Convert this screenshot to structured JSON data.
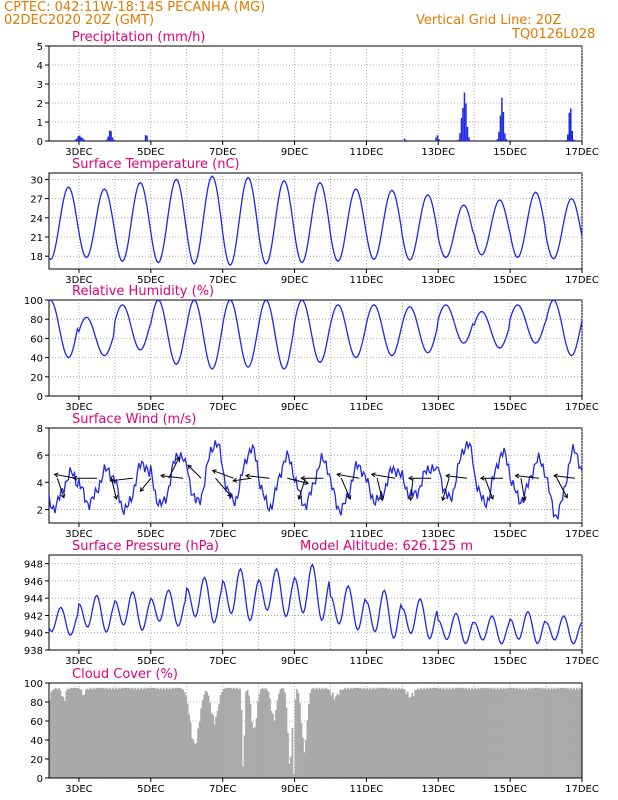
{
  "header": {
    "station": "CPTEC:  042:11W-18:14S  PECANHA (MG)",
    "run": "02DEC2020 20Z (GMT)",
    "grid_note": "Vertical Grid Line: 20Z",
    "model_code": "TQ0126L028"
  },
  "colors": {
    "header": "#e07a00",
    "title": "#e0007a",
    "series": "#1e28e6",
    "arrow": "#000000",
    "cloud": "#a9a9a9"
  },
  "x_axis": {
    "ticks": [
      "3DEC",
      "5DEC",
      "7DEC",
      "9DEC",
      "11DEC",
      "13DEC",
      "15DEC",
      "17DEC"
    ]
  },
  "chart_data": [
    {
      "type": "bar",
      "id": "precip",
      "title": "Precipitation (mm/h)",
      "ylim": [
        0,
        5
      ],
      "yticks": [
        0,
        1,
        2,
        3,
        4,
        5
      ],
      "events": [
        {
          "day": 3.0,
          "peak": 0.3,
          "width": 0.15
        },
        {
          "day": 3.85,
          "peak": 0.6,
          "width": 0.1
        },
        {
          "day": 4.85,
          "peak": 0.4,
          "width": 0.06
        },
        {
          "day": 12.05,
          "peak": 0.15,
          "width": 0.05
        },
        {
          "day": 12.95,
          "peak": 0.4,
          "width": 0.06
        },
        {
          "day": 13.7,
          "peak": 2.8,
          "width": 0.12
        },
        {
          "day": 14.75,
          "peak": 2.3,
          "width": 0.1
        },
        {
          "day": 16.65,
          "peak": 1.9,
          "width": 0.08
        }
      ]
    },
    {
      "type": "line",
      "id": "temp",
      "title": "Surface Temperature (nC)",
      "ylim": [
        16,
        31
      ],
      "yticks": [
        18,
        21,
        24,
        27,
        30
      ],
      "daily": [
        {
          "min": 17.5,
          "max": 28.8
        },
        {
          "min": 17.8,
          "max": 28.5
        },
        {
          "min": 17.2,
          "max": 29.5
        },
        {
          "min": 17.0,
          "max": 30.0
        },
        {
          "min": 16.8,
          "max": 30.5
        },
        {
          "min": 16.6,
          "max": 30.3
        },
        {
          "min": 16.8,
          "max": 29.8
        },
        {
          "min": 17.0,
          "max": 29.5
        },
        {
          "min": 17.2,
          "max": 28.5
        },
        {
          "min": 17.5,
          "max": 28.3
        },
        {
          "min": 17.4,
          "max": 27.6
        },
        {
          "min": 17.8,
          "max": 26.0
        },
        {
          "min": 18.2,
          "max": 26.8
        },
        {
          "min": 17.8,
          "max": 28.0
        },
        {
          "min": 17.6,
          "max": 27.0
        }
      ]
    },
    {
      "type": "line",
      "id": "rh",
      "title": "Relative Humidity (%)",
      "ylim": [
        0,
        100
      ],
      "yticks": [
        0,
        20,
        40,
        60,
        80,
        100
      ],
      "daily": [
        {
          "min": 40,
          "max": 100
        },
        {
          "min": 42,
          "max": 82
        },
        {
          "min": 48,
          "max": 95
        },
        {
          "min": 33,
          "max": 100
        },
        {
          "min": 28,
          "max": 100
        },
        {
          "min": 30,
          "max": 100
        },
        {
          "min": 28,
          "max": 100
        },
        {
          "min": 35,
          "max": 100
        },
        {
          "min": 40,
          "max": 95
        },
        {
          "min": 42,
          "max": 95
        },
        {
          "min": 45,
          "max": 93
        },
        {
          "min": 55,
          "max": 95
        },
        {
          "min": 50,
          "max": 88
        },
        {
          "min": 55,
          "max": 95
        },
        {
          "min": 42,
          "max": 100
        }
      ]
    },
    {
      "type": "line+vector",
      "id": "wind",
      "title": "Surface Wind (m/s)",
      "ylim": [
        1,
        8
      ],
      "yticks": [
        2,
        4,
        6,
        8
      ],
      "daily": [
        {
          "min": 2.2,
          "max": 4.6
        },
        {
          "min": 2.5,
          "max": 4.9
        },
        {
          "min": 2.0,
          "max": 5.4
        },
        {
          "min": 2.3,
          "max": 6.1
        },
        {
          "min": 2.5,
          "max": 6.9
        },
        {
          "min": 2.6,
          "max": 6.4
        },
        {
          "min": 2.2,
          "max": 5.8
        },
        {
          "min": 2.4,
          "max": 5.6
        },
        {
          "min": 2.0,
          "max": 5.2
        },
        {
          "min": 2.6,
          "max": 5.0
        },
        {
          "min": 3.0,
          "max": 5.1
        },
        {
          "min": 2.8,
          "max": 6.8
        },
        {
          "min": 2.5,
          "max": 6.1
        },
        {
          "min": 2.7,
          "max": 5.6
        },
        {
          "min": 1.6,
          "max": 6.3
        }
      ],
      "vectors": [
        {
          "day": 2.4,
          "u": 0.5,
          "v": -1.5
        },
        {
          "day": 2.9,
          "u": -1.6,
          "v": 0.3
        },
        {
          "day": 3.5,
          "u": -1.8,
          "v": 0.0
        },
        {
          "day": 3.9,
          "u": 0.4,
          "v": -1.6
        },
        {
          "day": 4.5,
          "u": -1.7,
          "v": -0.2
        },
        {
          "day": 5.0,
          "u": -0.8,
          "v": -1.0
        },
        {
          "day": 5.5,
          "u": 0.8,
          "v": 1.6
        },
        {
          "day": 5.9,
          "u": -1.7,
          "v": 0.2
        },
        {
          "day": 6.4,
          "u": -1.0,
          "v": 1.0
        },
        {
          "day": 6.8,
          "u": 1.2,
          "v": -1.4
        },
        {
          "day": 7.3,
          "u": -1.6,
          "v": 0.6
        },
        {
          "day": 7.8,
          "u": -1.4,
          "v": -0.2
        },
        {
          "day": 8.3,
          "u": -1.8,
          "v": 0.2
        },
        {
          "day": 8.8,
          "u": 1.6,
          "v": -0.4
        },
        {
          "day": 9.3,
          "u": -0.5,
          "v": -1.6
        },
        {
          "day": 9.8,
          "u": -1.7,
          "v": 0.0
        },
        {
          "day": 10.3,
          "u": 0.7,
          "v": -1.6
        },
        {
          "day": 10.8,
          "u": -1.7,
          "v": 0.3
        },
        {
          "day": 11.3,
          "u": 0.4,
          "v": -1.7
        },
        {
          "day": 11.8,
          "u": -1.8,
          "v": 0.3
        },
        {
          "day": 12.3,
          "u": -0.2,
          "v": -1.7
        },
        {
          "day": 12.8,
          "u": -1.7,
          "v": 0.0
        },
        {
          "day": 13.3,
          "u": -0.5,
          "v": -1.7
        },
        {
          "day": 13.8,
          "u": -1.6,
          "v": 0.2
        },
        {
          "day": 14.3,
          "u": 0.6,
          "v": -1.6
        },
        {
          "day": 14.8,
          "u": -1.7,
          "v": 0.0
        },
        {
          "day": 15.3,
          "u": 0.3,
          "v": -1.7
        },
        {
          "day": 15.8,
          "u": -1.8,
          "v": 0.2
        },
        {
          "day": 16.3,
          "u": 0.8,
          "v": -1.5
        },
        {
          "day": 16.8,
          "u": -1.6,
          "v": 0.2
        }
      ]
    },
    {
      "type": "line",
      "id": "press",
      "title": "Surface Pressure (hPa)",
      "extra_label": "Model Altitude: 626.125 m",
      "ylim": [
        938,
        949
      ],
      "yticks": [
        938,
        940,
        942,
        944,
        946,
        948
      ],
      "daily": [
        {
          "min": 939.5,
          "max": 943.0
        },
        {
          "min": 939.8,
          "max": 944.4
        },
        {
          "min": 940.0,
          "max": 944.8
        },
        {
          "min": 940.5,
          "max": 945.0
        },
        {
          "min": 940.8,
          "max": 946.5
        },
        {
          "min": 941.0,
          "max": 947.5
        },
        {
          "min": 941.5,
          "max": 947.5
        },
        {
          "min": 941.0,
          "max": 948.0
        },
        {
          "min": 940.0,
          "max": 945.5
        },
        {
          "min": 939.0,
          "max": 945.0
        },
        {
          "min": 939.0,
          "max": 944.0
        },
        {
          "min": 938.5,
          "max": 942.3
        },
        {
          "min": 938.5,
          "max": 942.0
        },
        {
          "min": 938.5,
          "max": 942.5
        },
        {
          "min": 938.5,
          "max": 942.0
        }
      ]
    },
    {
      "type": "area",
      "id": "cloud",
      "title": "Cloud Cover (%)",
      "ylim": [
        0,
        100
      ],
      "yticks": [
        0,
        20,
        40,
        60,
        80,
        100
      ],
      "baseline": 95,
      "dips": [
        {
          "day": 2.1,
          "min": 80,
          "width": 0.15
        },
        {
          "day": 2.55,
          "min": 82,
          "width": 0.1
        },
        {
          "day": 3.1,
          "min": 88,
          "width": 0.1
        },
        {
          "day": 6.2,
          "min": 35,
          "width": 0.25
        },
        {
          "day": 6.75,
          "min": 60,
          "width": 0.2
        },
        {
          "day": 7.55,
          "min": 5,
          "width": 0.06
        },
        {
          "day": 7.85,
          "min": 50,
          "width": 0.15
        },
        {
          "day": 8.4,
          "min": 62,
          "width": 0.15
        },
        {
          "day": 8.85,
          "min": 15,
          "width": 0.12
        },
        {
          "day": 8.95,
          "min": 2,
          "width": 0.05
        },
        {
          "day": 9.25,
          "min": 30,
          "width": 0.15
        },
        {
          "day": 10.1,
          "min": 85,
          "width": 0.2
        },
        {
          "day": 12.2,
          "min": 86,
          "width": 0.2
        }
      ]
    }
  ]
}
